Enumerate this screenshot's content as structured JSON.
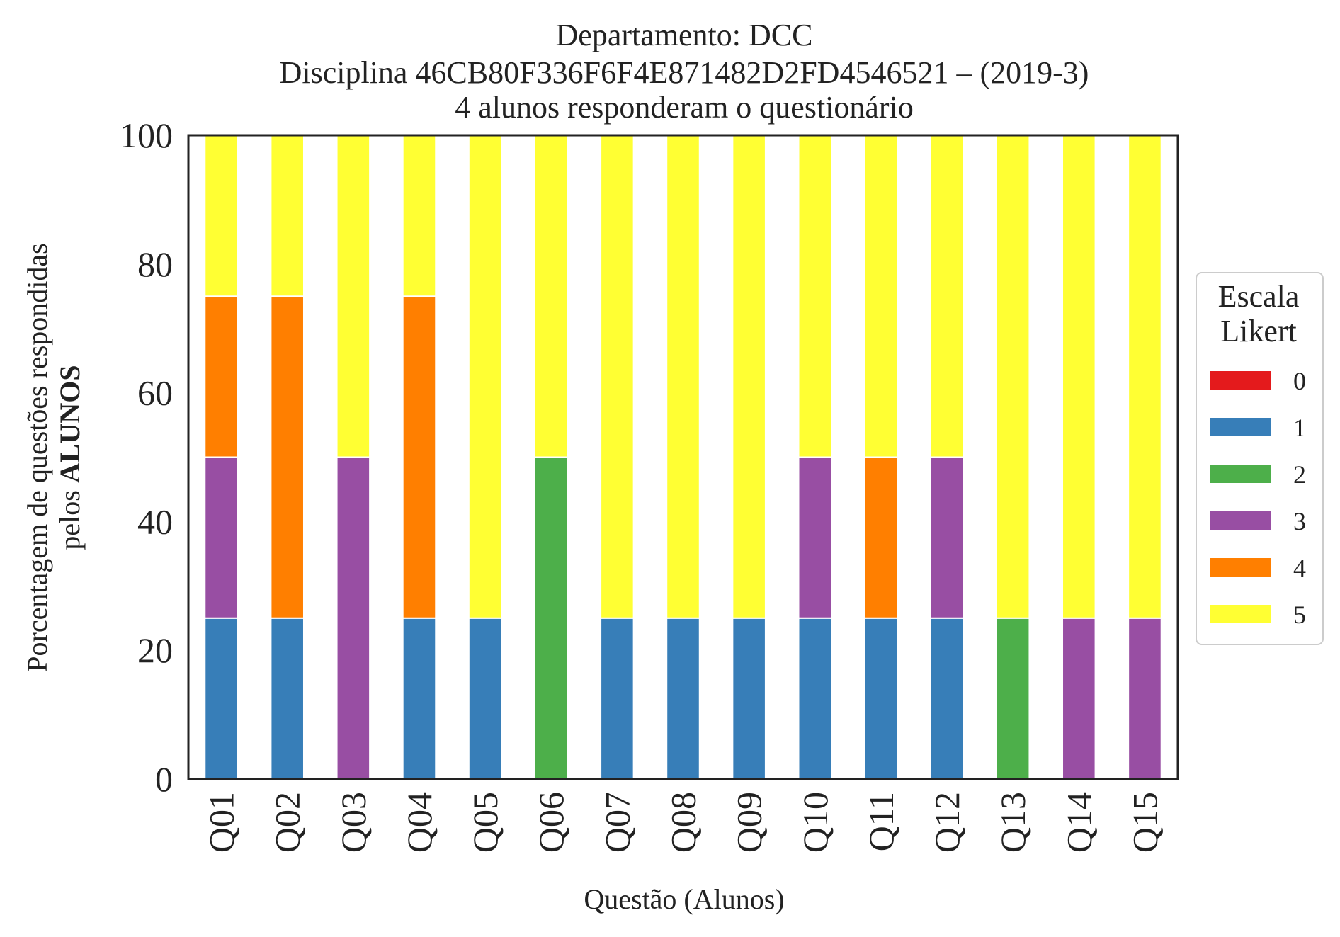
{
  "chart_data": {
    "type": "bar",
    "stacked": true,
    "title": [
      "Departamento: DCC",
      "Disciplina 46CB80F336F6F4E871482D2FD4546521 – (2019-3)",
      "4 alunos responderam o questionário"
    ],
    "xlabel": "Questão (Alunos)",
    "ylabel_line1": "Porcentagem de questões respondidas",
    "ylabel_line2_prefix": "pelos",
    "ylabel_line2_bold": "ALUNOS",
    "ylim": [
      0,
      100
    ],
    "yticks": [
      0,
      20,
      40,
      60,
      80,
      100
    ],
    "grid": false,
    "legend_position": "right",
    "legend_title": [
      "Escala",
      "Likert"
    ],
    "categories": [
      "Q01",
      "Q02",
      "Q03",
      "Q04",
      "Q05",
      "Q06",
      "Q07",
      "Q08",
      "Q09",
      "Q10",
      "Q11",
      "Q12",
      "Q13",
      "Q14",
      "Q15"
    ],
    "series": [
      {
        "name": "0",
        "color": "#e41a1c",
        "values": [
          0,
          0,
          0,
          0,
          0,
          0,
          0,
          0,
          0,
          0,
          0,
          0,
          0,
          0,
          0
        ]
      },
      {
        "name": "1",
        "color": "#377eb8",
        "values": [
          25,
          25,
          0,
          25,
          25,
          0,
          25,
          25,
          25,
          25,
          25,
          25,
          0,
          0,
          0
        ]
      },
      {
        "name": "2",
        "color": "#4daf4a",
        "values": [
          0,
          0,
          0,
          0,
          0,
          50,
          0,
          0,
          0,
          0,
          0,
          0,
          25,
          0,
          0
        ]
      },
      {
        "name": "3",
        "color": "#984ea3",
        "values": [
          25,
          0,
          50,
          0,
          0,
          0,
          0,
          0,
          0,
          25,
          0,
          25,
          0,
          25,
          25
        ]
      },
      {
        "name": "4",
        "color": "#ff7f00",
        "values": [
          25,
          50,
          0,
          50,
          0,
          0,
          0,
          0,
          0,
          0,
          25,
          0,
          0,
          0,
          0
        ]
      },
      {
        "name": "5",
        "color": "#ffff33",
        "values": [
          25,
          25,
          50,
          25,
          75,
          50,
          75,
          75,
          75,
          50,
          50,
          50,
          75,
          75,
          75
        ]
      }
    ]
  }
}
